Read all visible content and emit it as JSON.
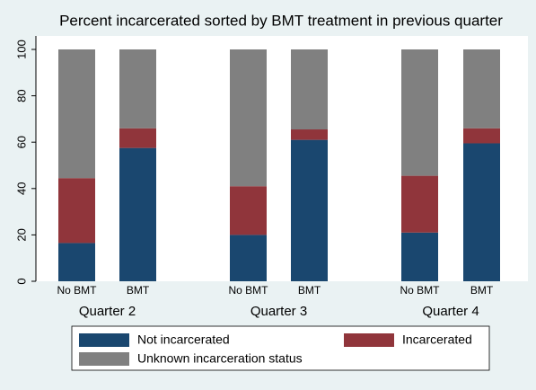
{
  "chart_data": {
    "type": "stacked_bar",
    "title": "Percent incarcerated sorted by BMT treatment in previous quarter",
    "groups": [
      "Quarter 2",
      "Quarter 3",
      "Quarter 4"
    ],
    "categories": [
      "No BMT",
      "BMT",
      "No BMT",
      "BMT",
      "No BMT",
      "BMT"
    ],
    "series": [
      {
        "name": "Not incarcerated",
        "color": "#1a476f",
        "values": [
          16.5,
          57.5,
          20,
          61,
          21,
          59.5
        ]
      },
      {
        "name": "Incarcerated",
        "color": "#90353b",
        "values": [
          28,
          8.5,
          21,
          4.5,
          24.5,
          6.5
        ]
      },
      {
        "name": "Unknown incarceration status",
        "color": "#808080",
        "values": [
          55.5,
          34,
          59,
          34.5,
          54.5,
          34
        ]
      }
    ],
    "ylim": [
      0,
      100
    ],
    "yticks": [
      0,
      20,
      40,
      60,
      80,
      100
    ],
    "grid": false,
    "legend": "bottom"
  }
}
